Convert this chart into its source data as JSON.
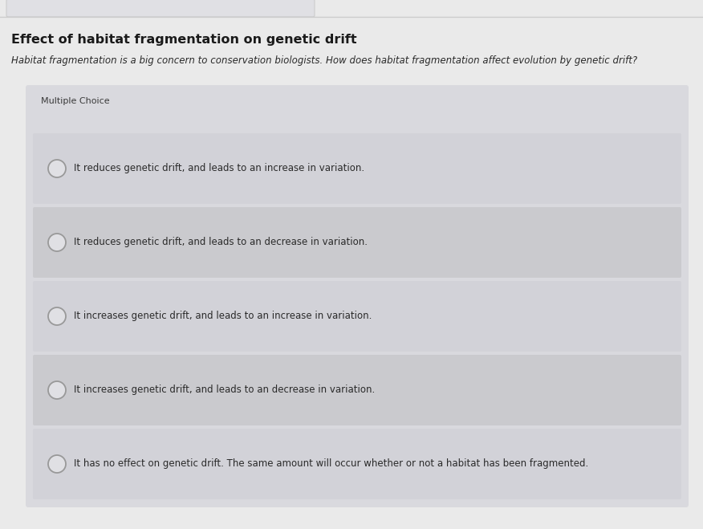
{
  "title": "Effect of habitat fragmentation on genetic drift",
  "subtitle": "Habitat fragmentation is a big concern to conservation biologists. How does habitat fragmentation affect evolution by genetic drift?",
  "section_label": "Multiple Choice",
  "choices": [
    "It reduces genetic drift, and leads to an increase in variation.",
    "It reduces genetic drift, and leads to an decrease in variation.",
    "It increases genetic drift, and leads to an increase in variation.",
    "It increases genetic drift, and leads to an decrease in variation.",
    "It has no effect on genetic drift. The same amount will occur whether or not a habitat has been fragmented."
  ],
  "bg_page": "#eaeaea",
  "bg_box": "#d9d9de",
  "bg_choice_light": "#d2d2d8",
  "bg_choice_dark": "#cacace",
  "title_color": "#1a1a1a",
  "subtitle_color": "#2a2a2a",
  "section_color": "#3a3a3a",
  "choice_text_color": "#2a2a2a",
  "circle_edge_color": "#999999",
  "circle_face_color": "#e0e0e4",
  "tab_line_color": "#cccccc",
  "title_fontsize": 11.5,
  "subtitle_fontsize": 8.5,
  "section_fontsize": 8.0,
  "choice_fontsize": 8.5
}
